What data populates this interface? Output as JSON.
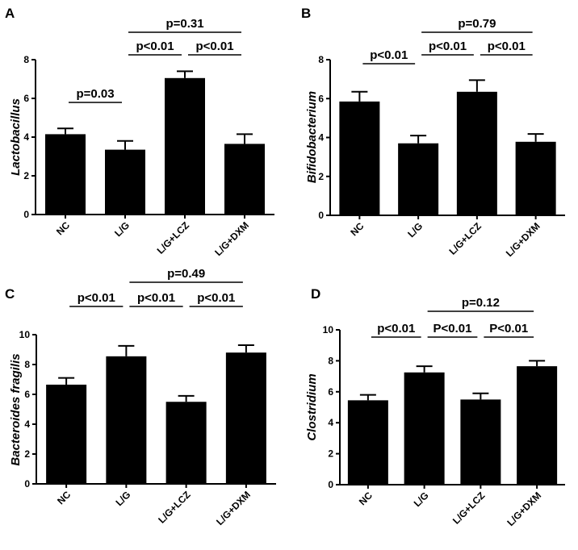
{
  "chart_data": [
    {
      "type": "bar",
      "panel": "A",
      "ylabel": "Lactobacillus",
      "categories": [
        "NC",
        "L/G",
        "L/G+LCZ",
        "L/G+DXM"
      ],
      "values": [
        4.15,
        3.35,
        7.05,
        3.65
      ],
      "errors": [
        0.3,
        0.45,
        0.35,
        0.5
      ],
      "ylim": [
        0,
        8
      ],
      "yticks": [
        "0",
        "2",
        "4",
        "6",
        "8"
      ],
      "comparisons": [
        {
          "from": 0,
          "to": 1,
          "label": "p=0.03"
        },
        {
          "from": 2,
          "to": 3,
          "label": "p<0.01"
        },
        {
          "from": 1,
          "to": 2,
          "label": "p<0.01"
        },
        {
          "from": 1,
          "to": 3,
          "label": "p=0.31"
        }
      ]
    },
    {
      "type": "bar",
      "panel": "B",
      "ylabel": "Bifidobacterium",
      "categories": [
        "NC",
        "L/G",
        "L/G+LCZ",
        "L/G+DXM"
      ],
      "values": [
        5.85,
        3.7,
        6.35,
        3.78
      ],
      "errors": [
        0.5,
        0.4,
        0.6,
        0.4
      ],
      "ylim": [
        0,
        8
      ],
      "yticks": [
        "0",
        "2",
        "4",
        "6",
        "8"
      ],
      "comparisons": [
        {
          "from": 0,
          "to": 1,
          "label": "p<0.01"
        },
        {
          "from": 1,
          "to": 2,
          "label": "p<0.01"
        },
        {
          "from": 2,
          "to": 3,
          "label": "p<0.01"
        },
        {
          "from": 1,
          "to": 3,
          "label": "p=0.79"
        }
      ]
    },
    {
      "type": "bar",
      "panel": "C",
      "ylabel": "Bacteroides fragilis",
      "categories": [
        "NC",
        "L/G",
        "L/G+LCZ",
        "L/G+DXM"
      ],
      "values": [
        6.65,
        8.55,
        5.5,
        8.8
      ],
      "errors": [
        0.45,
        0.7,
        0.4,
        0.5
      ],
      "ylim": [
        0,
        10
      ],
      "yticks": [
        "0",
        "2",
        "4",
        "6",
        "8",
        "10"
      ],
      "comparisons": [
        {
          "from": 0,
          "to": 1,
          "label": "p<0.01"
        },
        {
          "from": 1,
          "to": 2,
          "label": "p<0.01"
        },
        {
          "from": 2,
          "to": 3,
          "label": "p<0.01"
        },
        {
          "from": 1,
          "to": 3,
          "label": "p=0.49"
        }
      ]
    },
    {
      "type": "bar",
      "panel": "D",
      "ylabel": "Clostridium",
      "categories": [
        "NC",
        "L/G",
        "L/G+LCZ",
        "L/G+DXM"
      ],
      "values": [
        5.45,
        7.25,
        5.5,
        7.65
      ],
      "errors": [
        0.35,
        0.4,
        0.4,
        0.35
      ],
      "ylim": [
        0,
        10
      ],
      "yticks": [
        "0",
        "2",
        "4",
        "6",
        "8",
        "10"
      ],
      "comparisons": [
        {
          "from": 0,
          "to": 1,
          "label": "p<0.01"
        },
        {
          "from": 1,
          "to": 2,
          "label": "P<0.01"
        },
        {
          "from": 2,
          "to": 3,
          "label": "P<0.01"
        },
        {
          "from": 1,
          "to": 3,
          "label": "p=0.12"
        }
      ]
    }
  ],
  "colors": {
    "bar": "#000000",
    "axis": "#000000",
    "background": "#ffffff"
  }
}
